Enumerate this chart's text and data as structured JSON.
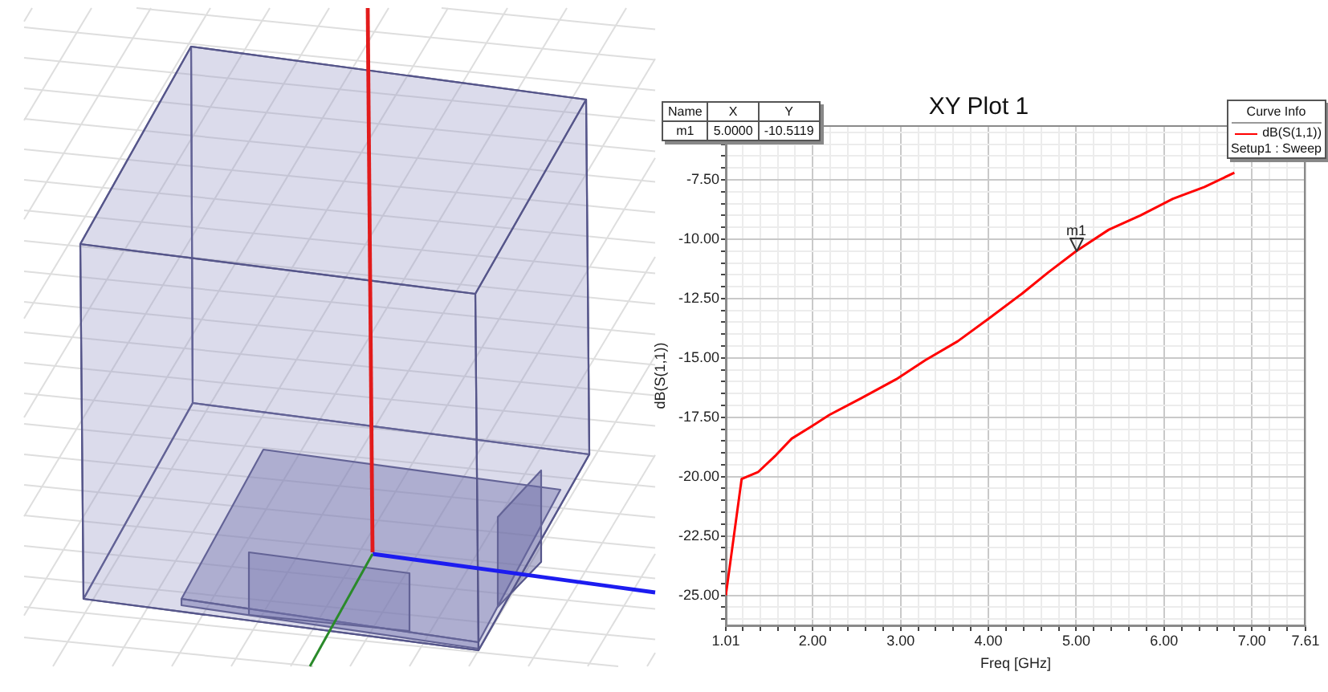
{
  "chart_data": {
    "type": "line",
    "title": "XY Plot 1",
    "xlabel": "Freq [GHz]",
    "ylabel": "dB(S(1,1))",
    "legend_title": "Curve Info",
    "series": [
      {
        "name": "dB(S(1,1))",
        "color": "#ff0000",
        "x": [
          1.01,
          1.19,
          1.38,
          1.58,
          1.76,
          1.98,
          2.19,
          2.55,
          2.95,
          3.28,
          3.65,
          4.02,
          4.38,
          4.68,
          5.0,
          5.37,
          5.73,
          6.1,
          6.46,
          6.8
        ],
        "values": [
          -25.0,
          -20.1,
          -19.8,
          -19.1,
          -18.4,
          -17.9,
          -17.4,
          -16.7,
          -15.9,
          -15.1,
          -14.3,
          -13.3,
          -12.3,
          -11.4,
          -10.5,
          -9.6,
          -9.0,
          -8.3,
          -7.8,
          -7.2
        ]
      }
    ],
    "xlim": [
      1.01,
      7.61
    ],
    "xticks": [
      {
        "value": 1.01,
        "label": "1.01"
      },
      {
        "value": 1.2,
        "label": null
      },
      {
        "value": 1.4,
        "label": null
      },
      {
        "value": 1.6,
        "label": null
      },
      {
        "value": 1.8,
        "label": null
      },
      {
        "value": 2,
        "label": "2.00"
      },
      {
        "value": 2.2,
        "label": null
      },
      {
        "value": 2.4,
        "label": null
      },
      {
        "value": 2.6,
        "label": null
      },
      {
        "value": 2.8,
        "label": null
      },
      {
        "value": 3,
        "label": "3.00"
      },
      {
        "value": 3.2,
        "label": null
      },
      {
        "value": 3.4,
        "label": null
      },
      {
        "value": 3.6,
        "label": null
      },
      {
        "value": 3.8,
        "label": null
      },
      {
        "value": 4,
        "label": "4.00"
      },
      {
        "value": 4.2,
        "label": null
      },
      {
        "value": 4.4,
        "label": null
      },
      {
        "value": 4.6,
        "label": null
      },
      {
        "value": 4.8,
        "label": null
      },
      {
        "value": 5,
        "label": "5.00"
      },
      {
        "value": 5.2,
        "label": null
      },
      {
        "value": 5.4,
        "label": null
      },
      {
        "value": 5.6,
        "label": null
      },
      {
        "value": 5.8,
        "label": null
      },
      {
        "value": 6,
        "label": "6.00"
      },
      {
        "value": 6.2,
        "label": null
      },
      {
        "value": 6.4,
        "label": null
      },
      {
        "value": 6.6,
        "label": null
      },
      {
        "value": 6.8,
        "label": null
      },
      {
        "value": 7,
        "label": "7.00"
      },
      {
        "value": 7.2,
        "label": null
      },
      {
        "value": 7.4,
        "label": null
      },
      {
        "value": 7.61,
        "label": "7.61"
      }
    ],
    "ylim": [
      -26.3,
      -5.2
    ],
    "yticks": [
      {
        "value": -26,
        "label": null
      },
      {
        "value": -25.5,
        "label": null
      },
      {
        "value": -25,
        "label": "-25.00"
      },
      {
        "value": -24.5,
        "label": null
      },
      {
        "value": -24,
        "label": null
      },
      {
        "value": -23.5,
        "label": null
      },
      {
        "value": -23,
        "label": null
      },
      {
        "value": -22.5,
        "label": "-22.50"
      },
      {
        "value": -22,
        "label": null
      },
      {
        "value": -21.5,
        "label": null
      },
      {
        "value": -21,
        "label": null
      },
      {
        "value": -20.5,
        "label": null
      },
      {
        "value": -20,
        "label": "-20.00"
      },
      {
        "value": -19.5,
        "label": null
      },
      {
        "value": -19,
        "label": null
      },
      {
        "value": -18.5,
        "label": null
      },
      {
        "value": -18,
        "label": null
      },
      {
        "value": -17.5,
        "label": "-17.50"
      },
      {
        "value": -17,
        "label": null
      },
      {
        "value": -16.5,
        "label": null
      },
      {
        "value": -16,
        "label": null
      },
      {
        "value": -15.5,
        "label": null
      },
      {
        "value": -15,
        "label": "-15.00"
      },
      {
        "value": -14.5,
        "label": null
      },
      {
        "value": -14,
        "label": null
      },
      {
        "value": -13.5,
        "label": null
      },
      {
        "value": -13,
        "label": null
      },
      {
        "value": -12.5,
        "label": "-12.50"
      },
      {
        "value": -12,
        "label": null
      },
      {
        "value": -11.5,
        "label": null
      },
      {
        "value": -11,
        "label": null
      },
      {
        "value": -10.5,
        "label": null
      },
      {
        "value": -10,
        "label": "-10.00"
      },
      {
        "value": -9.5,
        "label": null
      },
      {
        "value": -9,
        "label": null
      },
      {
        "value": -8.5,
        "label": null
      },
      {
        "value": -8,
        "label": null
      },
      {
        "value": -7.5,
        "label": "-7.50"
      },
      {
        "value": -7,
        "label": null
      },
      {
        "value": -6.5,
        "label": null
      },
      {
        "value": -6,
        "label": null
      },
      {
        "value": -5.5,
        "label": null
      }
    ],
    "annotations": [
      "Name",
      "X",
      "Y",
      "m1",
      "5.0000",
      "-10.5119",
      "Setup1 : Sweep",
      {
        "text": "m1",
        "x": 5.0,
        "y": -10.5119
      }
    ],
    "grid": true,
    "legend": "top right",
    "marker": "none",
    "line_style": "solid"
  }
}
